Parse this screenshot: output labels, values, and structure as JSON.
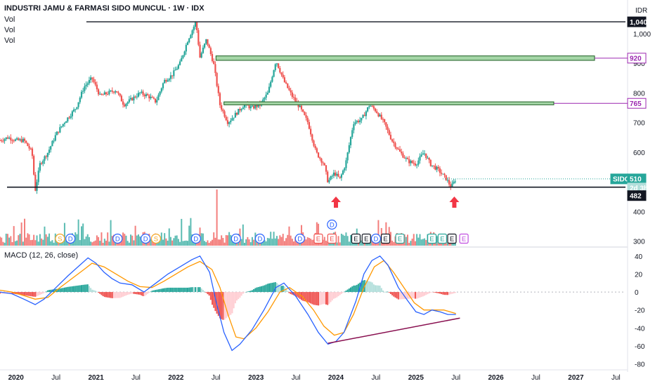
{
  "header": {
    "title": "INDUSTRI JAMU & FARMASI SIDO MUNCUL · 1W · IDX",
    "vol_labels": [
      "Vol",
      "Vol",
      "Vol"
    ],
    "currency": "IDR"
  },
  "macd": {
    "label": "MACD (12, 26, close)",
    "yticks": [
      40,
      20,
      0,
      -20,
      -40,
      -60,
      -80
    ]
  },
  "price_axis": {
    "ticks": [
      "1,000",
      "900",
      "800",
      "700",
      "600",
      "400",
      "300"
    ],
    "tick_values": [
      1000,
      900,
      800,
      700,
      600,
      400,
      300
    ]
  },
  "badges": {
    "b1040": "1,040",
    "b920": "920",
    "b765": "765",
    "ticker": "SIDO",
    "price": "510",
    "countdown": "2d 3h",
    "b482": "482"
  },
  "time_axis": [
    "2020",
    "Jul",
    "2021",
    "Jul",
    "2022",
    "Jul",
    "2023",
    "Jul",
    "2024",
    "Jul",
    "2025",
    "Jul",
    "2026",
    "Jul",
    "2027",
    "Jul"
  ],
  "event_markers": [
    {
      "t": 2020.55,
      "label": "S",
      "kind": "split"
    },
    {
      "t": 2020.68,
      "label": "D",
      "kind": "dividend"
    },
    {
      "t": 2021.27,
      "label": "D",
      "kind": "dividend"
    },
    {
      "t": 2021.62,
      "label": "D",
      "kind": "dividend"
    },
    {
      "t": 2021.75,
      "label": "S",
      "kind": "split"
    },
    {
      "t": 2022.25,
      "label": "D",
      "kind": "dividend"
    },
    {
      "t": 2022.75,
      "label": "D",
      "kind": "dividend"
    },
    {
      "t": 2023.05,
      "label": "D",
      "kind": "dividend"
    },
    {
      "t": 2023.55,
      "label": "D",
      "kind": "dividend"
    },
    {
      "t": 2023.78,
      "label": "E",
      "kind": "earnings-red"
    },
    {
      "t": 2023.95,
      "label": "E",
      "kind": "earnings-red"
    },
    {
      "t": 2023.95,
      "label": "D",
      "kind": "dividend-high"
    },
    {
      "t": 2024.25,
      "label": "E",
      "kind": "earnings"
    },
    {
      "t": 2024.38,
      "label": "E",
      "kind": "earnings"
    },
    {
      "t": 2024.5,
      "label": "D",
      "kind": "dividend"
    },
    {
      "t": 2024.62,
      "label": "E",
      "kind": "earnings"
    },
    {
      "t": 2024.8,
      "label": "E",
      "kind": "earnings-green"
    },
    {
      "t": 2025.2,
      "label": "E",
      "kind": "earnings-green"
    },
    {
      "t": 2025.33,
      "label": "E",
      "kind": "earnings-green"
    },
    {
      "t": 2025.45,
      "label": "E",
      "kind": "earnings"
    },
    {
      "t": 2025.6,
      "label": "E",
      "kind": "earnings-future"
    }
  ],
  "colors": {
    "up": "#26a69a",
    "down": "#ef5350",
    "zone_fill": "#a5d6a7",
    "zone_edge": "#1b5e20",
    "purple": "#9c27b0",
    "macd_line": "#2962ff",
    "signal_line": "#ff9800",
    "trendline": "#880e4f",
    "arrow": "#f23645"
  },
  "chart_data": {
    "type": "candlestick",
    "symbol": "SIDO",
    "exchange": "IDX",
    "interval": "1W",
    "price_close_points": [
      [
        2019.8,
        640
      ],
      [
        2019.9,
        650
      ],
      [
        2020.0,
        640
      ],
      [
        2020.1,
        640
      ],
      [
        2020.2,
        600
      ],
      [
        2020.24,
        470
      ],
      [
        2020.3,
        560
      ],
      [
        2020.4,
        600
      ],
      [
        2020.5,
        660
      ],
      [
        2020.6,
        700
      ],
      [
        2020.75,
        750
      ],
      [
        2020.85,
        820
      ],
      [
        2020.95,
        850
      ],
      [
        2021.0,
        820
      ],
      [
        2021.05,
        790
      ],
      [
        2021.15,
        800
      ],
      [
        2021.25,
        810
      ],
      [
        2021.35,
        760
      ],
      [
        2021.45,
        780
      ],
      [
        2021.55,
        800
      ],
      [
        2021.65,
        790
      ],
      [
        2021.75,
        770
      ],
      [
        2021.85,
        840
      ],
      [
        2021.95,
        860
      ],
      [
        2022.05,
        900
      ],
      [
        2022.15,
        980
      ],
      [
        2022.25,
        1040
      ],
      [
        2022.3,
        920
      ],
      [
        2022.38,
        980
      ],
      [
        2022.47,
        900
      ],
      [
        2022.55,
        760
      ],
      [
        2022.65,
        700
      ],
      [
        2022.75,
        730
      ],
      [
        2022.85,
        760
      ],
      [
        2022.95,
        750
      ],
      [
        2023.05,
        760
      ],
      [
        2023.15,
        800
      ],
      [
        2023.25,
        910
      ],
      [
        2023.35,
        840
      ],
      [
        2023.45,
        790
      ],
      [
        2023.55,
        750
      ],
      [
        2023.65,
        700
      ],
      [
        2023.75,
        600
      ],
      [
        2023.85,
        560
      ],
      [
        2023.9,
        500
      ],
      [
        2023.98,
        530
      ],
      [
        2024.05,
        510
      ],
      [
        2024.12,
        560
      ],
      [
        2024.22,
        700
      ],
      [
        2024.32,
        710
      ],
      [
        2024.42,
        760
      ],
      [
        2024.5,
        740
      ],
      [
        2024.6,
        700
      ],
      [
        2024.7,
        640
      ],
      [
        2024.8,
        600
      ],
      [
        2024.9,
        570
      ],
      [
        2025.0,
        560
      ],
      [
        2025.1,
        600
      ],
      [
        2025.18,
        560
      ],
      [
        2025.28,
        540
      ],
      [
        2025.38,
        510
      ],
      [
        2025.44,
        482
      ],
      [
        2025.5,
        510
      ]
    ],
    "horizontal_levels": [
      1040,
      482
    ],
    "zones": [
      {
        "from": 910,
        "to": 925,
        "label": "920"
      },
      {
        "from": 760,
        "to": 770,
        "label": "765"
      }
    ],
    "last_price": 510,
    "support_price": 482,
    "macd_points": [
      [
        2019.8,
        0
      ],
      [
        2019.95,
        -2
      ],
      [
        2020.1,
        -8
      ],
      [
        2020.24,
        -14
      ],
      [
        2020.35,
        -8
      ],
      [
        2020.5,
        5
      ],
      [
        2020.65,
        18
      ],
      [
        2020.8,
        30
      ],
      [
        2020.9,
        38
      ],
      [
        2021.0,
        32
      ],
      [
        2021.1,
        22
      ],
      [
        2021.2,
        15
      ],
      [
        2021.3,
        10
      ],
      [
        2021.45,
        8
      ],
      [
        2021.6,
        0
      ],
      [
        2021.75,
        10
      ],
      [
        2021.9,
        20
      ],
      [
        2022.05,
        28
      ],
      [
        2022.2,
        36
      ],
      [
        2022.3,
        40
      ],
      [
        2022.42,
        22
      ],
      [
        2022.5,
        -10
      ],
      [
        2022.6,
        -45
      ],
      [
        2022.7,
        -65
      ],
      [
        2022.8,
        -58
      ],
      [
        2022.95,
        -42
      ],
      [
        2023.1,
        -20
      ],
      [
        2023.25,
        5
      ],
      [
        2023.35,
        10
      ],
      [
        2023.5,
        -5
      ],
      [
        2023.65,
        -25
      ],
      [
        2023.78,
        -45
      ],
      [
        2023.9,
        -58
      ],
      [
        2024.0,
        -55
      ],
      [
        2024.1,
        -45
      ],
      [
        2024.25,
        -10
      ],
      [
        2024.35,
        20
      ],
      [
        2024.45,
        35
      ],
      [
        2024.55,
        40
      ],
      [
        2024.65,
        30
      ],
      [
        2024.78,
        5
      ],
      [
        2024.9,
        -10
      ],
      [
        2025.0,
        -22
      ],
      [
        2025.1,
        -25
      ],
      [
        2025.2,
        -20
      ],
      [
        2025.3,
        -22
      ],
      [
        2025.4,
        -25
      ],
      [
        2025.5,
        -25
      ]
    ],
    "signal_points": [
      [
        2019.8,
        2
      ],
      [
        2019.95,
        0
      ],
      [
        2020.1,
        -4
      ],
      [
        2020.24,
        -8
      ],
      [
        2020.4,
        -6
      ],
      [
        2020.55,
        5
      ],
      [
        2020.7,
        15
      ],
      [
        2020.85,
        25
      ],
      [
        2020.95,
        32
      ],
      [
        2021.1,
        28
      ],
      [
        2021.25,
        20
      ],
      [
        2021.4,
        12
      ],
      [
        2021.55,
        6
      ],
      [
        2021.7,
        5
      ],
      [
        2021.85,
        12
      ],
      [
        2022.0,
        20
      ],
      [
        2022.15,
        28
      ],
      [
        2022.3,
        34
      ],
      [
        2022.45,
        25
      ],
      [
        2022.55,
        5
      ],
      [
        2022.65,
        -25
      ],
      [
        2022.75,
        -50
      ],
      [
        2022.85,
        -52
      ],
      [
        2023.0,
        -40
      ],
      [
        2023.15,
        -22
      ],
      [
        2023.3,
        0
      ],
      [
        2023.42,
        5
      ],
      [
        2023.58,
        -5
      ],
      [
        2023.72,
        -20
      ],
      [
        2023.85,
        -38
      ],
      [
        2023.98,
        -48
      ],
      [
        2024.1,
        -45
      ],
      [
        2024.22,
        -25
      ],
      [
        2024.35,
        5
      ],
      [
        2024.48,
        28
      ],
      [
        2024.6,
        35
      ],
      [
        2024.72,
        22
      ],
      [
        2024.85,
        5
      ],
      [
        2024.98,
        -12
      ],
      [
        2025.1,
        -20
      ],
      [
        2025.22,
        -20
      ],
      [
        2025.35,
        -20
      ],
      [
        2025.5,
        -24
      ]
    ],
    "macd_trendline": [
      [
        2023.9,
        -57
      ],
      [
        2025.55,
        -29
      ]
    ],
    "xlim": [
      2019.8,
      2027.62
    ],
    "ylim_price": [
      280,
      1090
    ],
    "ylim_macd": [
      -85,
      50
    ]
  }
}
